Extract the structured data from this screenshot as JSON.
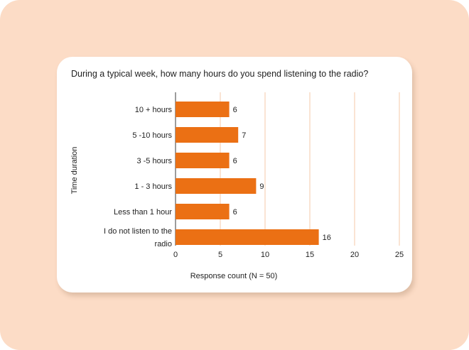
{
  "chart_data": {
    "type": "bar",
    "orientation": "horizontal",
    "title": "During a typical week, how many hours do you spend listening to the radio?",
    "xlabel": "Response count (N = 50)",
    "ylabel": "Time duration",
    "categories": [
      "10 + hours",
      "5 -10 hours",
      "3 -5 hours",
      "1 - 3 hours",
      "Less than 1 hour",
      "I do not listen to the radio"
    ],
    "category_lines": [
      [
        "10 + hours"
      ],
      [
        "5 -10 hours"
      ],
      [
        "3 -5 hours"
      ],
      [
        "1 - 3 hours"
      ],
      [
        "Less than 1 hour"
      ],
      [
        "I do not listen to the",
        "radio"
      ]
    ],
    "values": [
      6,
      7,
      6,
      9,
      6,
      16
    ],
    "xlim": [
      0,
      25
    ],
    "xticks": [
      0,
      5,
      10,
      15,
      20,
      25
    ],
    "grid": "vertical",
    "legend": "none",
    "bar_color": "#eb7014",
    "grid_color": "#f6c9a9"
  }
}
